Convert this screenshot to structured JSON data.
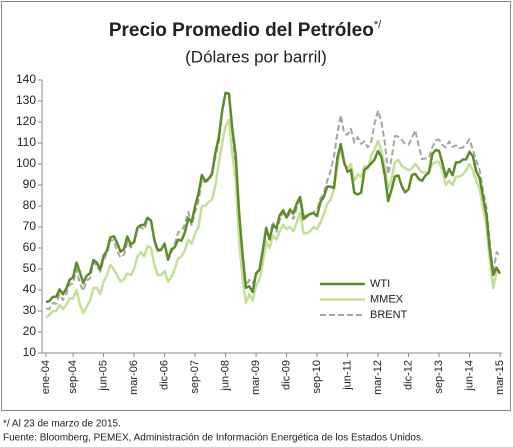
{
  "chart_data": {
    "type": "line",
    "title": "Precio Promedio del Petróleo",
    "title_mark": "*/",
    "subtitle": "(Dólares por barril)",
    "notes": [
      "*/ Al 23 de marzo de 2015.",
      "Fuente: Bloomberg, PEMEX, Administración de Información Energética de los Estados Unidos."
    ],
    "categories": [
      "ene-04",
      null,
      null,
      null,
      null,
      null,
      null,
      null,
      "sep-04",
      null,
      null,
      null,
      null,
      null,
      null,
      null,
      null,
      "jun-05",
      null,
      null,
      null,
      null,
      null,
      null,
      null,
      null,
      "mar-06",
      null,
      null,
      null,
      null,
      null,
      null,
      null,
      null,
      "dic-06",
      null,
      null,
      null,
      null,
      null,
      null,
      null,
      null,
      "sep-07",
      null,
      null,
      null,
      null,
      null,
      null,
      null,
      null,
      "jun-08",
      null,
      null,
      null,
      null,
      null,
      null,
      null,
      null,
      "mar-09",
      null,
      null,
      null,
      null,
      null,
      null,
      null,
      null,
      "dic-09",
      null,
      null,
      null,
      null,
      null,
      null,
      null,
      null,
      "sep-10",
      null,
      null,
      null,
      null,
      null,
      null,
      null,
      null,
      "jun-11",
      null,
      null,
      null,
      null,
      null,
      null,
      null,
      null,
      "mar-12",
      null,
      null,
      null,
      null,
      null,
      null,
      null,
      null,
      "dic-12",
      null,
      null,
      null,
      null,
      null,
      null,
      null,
      null,
      "sep-13",
      null,
      null,
      null,
      null,
      null,
      null,
      null,
      null,
      "jun-14",
      null,
      null,
      null,
      null,
      null,
      null,
      null,
      null,
      "mar-15"
    ],
    "series": [
      {
        "name": "WTI",
        "color": "#5e8b2a",
        "style": "solid",
        "width": 2.5,
        "values": [
          34.3,
          34.7,
          36.7,
          36.7,
          40.3,
          38.0,
          40.7,
          44.9,
          46.0,
          53.1,
          48.5,
          43.3,
          46.8,
          48.0,
          54.3,
          53.0,
          49.8,
          56.3,
          58.7,
          65.0,
          65.6,
          62.4,
          58.3,
          59.4,
          65.5,
          61.6,
          62.9,
          69.7,
          70.9,
          71.0,
          74.4,
          73.0,
          63.8,
          58.9,
          59.4,
          62.0,
          54.5,
          59.3,
          60.4,
          64.0,
          63.5,
          67.5,
          74.1,
          72.4,
          79.9,
          85.8,
          94.8,
          91.7,
          93.0,
          95.4,
          105.4,
          112.6,
          125.4,
          133.9,
          133.4,
          116.7,
          104.1,
          76.6,
          57.3,
          41.1,
          41.7,
          39.1,
          47.9,
          49.6,
          59.0,
          69.6,
          64.1,
          71.0,
          69.4,
          75.7,
          77.9,
          74.5,
          78.3,
          76.4,
          81.2,
          84.3,
          73.7,
          75.3,
          76.3,
          76.6,
          75.2,
          81.9,
          84.3,
          89.2,
          89.2,
          88.6,
          102.9,
          109.5,
          100.9,
          96.3,
          97.3,
          86.3,
          85.5,
          86.3,
          97.2,
          98.6,
          100.3,
          102.2,
          106.2,
          103.3,
          94.7,
          82.3,
          87.9,
          94.1,
          94.5,
          89.5,
          86.5,
          87.9,
          94.8,
          95.3,
          92.9,
          92.0,
          94.5,
          95.8,
          104.6,
          106.6,
          106.3,
          100.5,
          93.9,
          97.6,
          94.6,
          100.8,
          100.8,
          102.1,
          102.2,
          105.8,
          103.6,
          96.5,
          93.2,
          84.4,
          75.8,
          59.3,
          47.2,
          50.6,
          47.8
        ]
      },
      {
        "name": "MMEX",
        "color": "#c4df98",
        "style": "solid",
        "width": 2.5,
        "values": [
          27,
          28,
          30,
          30,
          33,
          31,
          33,
          36,
          36,
          40,
          33,
          29,
          32,
          35,
          41,
          41,
          38,
          44,
          47,
          52,
          50,
          47,
          44,
          45,
          48,
          47,
          50,
          56,
          58,
          56,
          61,
          60,
          52,
          47,
          47,
          49,
          44,
          46,
          50,
          55,
          56,
          59,
          64,
          62,
          67,
          70,
          80,
          80,
          82,
          83,
          90,
          100,
          110,
          118,
          121,
          105,
          92,
          63,
          46,
          34,
          38,
          35,
          42,
          45,
          53,
          63,
          60,
          66,
          64,
          68,
          71,
          69,
          70,
          68,
          72,
          77,
          67,
          67,
          68,
          70,
          69,
          72,
          76,
          81,
          83,
          88,
          100,
          108,
          100,
          98,
          100,
          92,
          95,
          94,
          99,
          98,
          104,
          107,
          111,
          106,
          99,
          88,
          93,
          101,
          102,
          99,
          98,
          97,
          98,
          100,
          98,
          96,
          96,
          96,
          100,
          101,
          101,
          97,
          90,
          92,
          90,
          94,
          94,
          95,
          97,
          100,
          97,
          92,
          88,
          79,
          71,
          54,
          41,
          49,
          49
        ]
      },
      {
        "name": "BRENT",
        "color": "#a6a6a6",
        "style": "dashed",
        "width": 2,
        "values": [
          31.2,
          30.9,
          33.8,
          33.4,
          37.9,
          35.2,
          38.2,
          42.7,
          43.2,
          49.8,
          43.1,
          39.6,
          44.5,
          45.5,
          53.1,
          51.9,
          48.7,
          54.3,
          57.5,
          63.9,
          63.6,
          58.5,
          55.5,
          56.9,
          62.9,
          60.2,
          62.1,
          70.3,
          69.8,
          68.7,
          73.7,
          73.2,
          62.5,
          58.4,
          58.9,
          62.3,
          54.3,
          57.8,
          62.0,
          67.5,
          67.9,
          71.3,
          77.2,
          70.8,
          77.1,
          82.3,
          92.5,
          91.5,
          91.9,
          94.8,
          103.3,
          110.4,
          124.6,
          133.5,
          133.9,
          113.0,
          99.0,
          72.8,
          53.2,
          41.6,
          44.9,
          43.2,
          46.8,
          50.9,
          57.9,
          68.6,
          64.9,
          72.5,
          67.7,
          73.2,
          77.0,
          74.7,
          76.2,
          73.8,
          78.8,
          84.8,
          75.9,
          74.8,
          75.6,
          77.1,
          78.2,
          83.5,
          86.1,
          92.0,
          96.5,
          103.7,
          114.6,
          123.3,
          114.5,
          113.9,
          116.7,
          110.2,
          112.8,
          109.6,
          110.8,
          107.9,
          110.7,
          119.3,
          125.5,
          119.8,
          110.3,
          95.2,
          102.6,
          113.4,
          113.0,
          111.5,
          109.5,
          109.2,
          112.3,
          116.1,
          108.5,
          102.3,
          102.6,
          102.9,
          107.9,
          111.3,
          111.6,
          109.1,
          107.8,
          110.8,
          108.1,
          108.9,
          107.5,
          107.8,
          109.5,
          111.8,
          106.8,
          101.6,
          97.1,
          87.4,
          79.4,
          62.3,
          47.8,
          58.1,
          56.0
        ]
      }
    ],
    "ylim": [
      10,
      140
    ],
    "yticks": [
      10,
      20,
      30,
      40,
      50,
      60,
      70,
      80,
      90,
      100,
      110,
      120,
      130,
      140
    ],
    "grid": false,
    "legend": "lower-right"
  }
}
